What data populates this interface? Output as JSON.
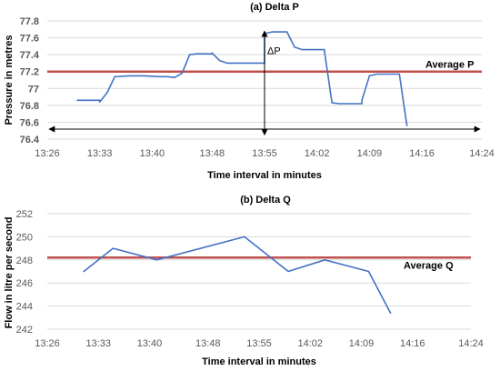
{
  "chart_data": [
    {
      "type": "line",
      "title": "(a) Delta P",
      "xlabel": "Time interval in minutes",
      "ylabel": "Pressure in metres",
      "x_tick_labels": [
        "13:26",
        "13:33",
        "13:40",
        "13:48",
        "13:55",
        "14:02",
        "14:09",
        "14:16",
        "14:24"
      ],
      "y_tick_labels": [
        "76.4",
        "76.6",
        "76.8",
        "77",
        "77.2",
        "77.4",
        "77.6",
        "77.8"
      ],
      "xlim": [
        "13:26",
        "14:24"
      ],
      "ylim": [
        76.4,
        77.8
      ],
      "grid": "horizontal",
      "colors": {
        "series": "#4472C4",
        "average": "#C0504D",
        "arrow": "#000000"
      },
      "series": [
        {
          "x": [
            "13:30",
            "13:31",
            "13:32",
            "13:33",
            "13:33",
            "13:34",
            "13:35",
            "13:37",
            "13:39",
            "13:41",
            "13:42",
            "13:43",
            "13:43",
            "13:44",
            "13:45",
            "13:46",
            "13:47",
            "13:48",
            "13:48",
            "13:49",
            "13:50",
            "13:51",
            "13:52",
            "13:53",
            "13:54",
            "13:55",
            "13:55",
            "13:56",
            "13:57",
            "13:58",
            "13:58",
            "13:59",
            "14:00",
            "14:01",
            "14:02",
            "14:03",
            "14:03",
            "14:04",
            "14:05",
            "14:06",
            "14:07",
            "14:08",
            "14:08",
            "14:09",
            "14:10",
            "14:11",
            "14:12",
            "14:13",
            "14:14"
          ],
          "values": [
            76.86,
            76.86,
            76.86,
            76.86,
            76.84,
            76.95,
            77.14,
            77.15,
            77.15,
            77.14,
            77.14,
            77.13,
            77.13,
            77.18,
            77.4,
            77.41,
            77.41,
            77.41,
            77.42,
            77.33,
            77.3,
            77.3,
            77.3,
            77.3,
            77.3,
            77.3,
            77.65,
            77.67,
            77.67,
            77.67,
            77.67,
            77.49,
            77.46,
            77.46,
            77.46,
            77.46,
            77.44,
            76.83,
            76.82,
            76.82,
            76.82,
            76.82,
            76.86,
            77.15,
            77.17,
            77.17,
            77.17,
            77.17,
            76.56
          ]
        }
      ],
      "reference_line": {
        "label": "Average P",
        "value": 77.2
      },
      "annotations": [
        {
          "text": "ΔP"
        }
      ]
    },
    {
      "type": "line",
      "title": "(b) Delta Q",
      "xlabel": "Time interval in minutes",
      "ylabel": "Flow in litre per second",
      "x_tick_labels": [
        "13:26",
        "13:33",
        "13:40",
        "13:48",
        "13:55",
        "14:02",
        "14:09",
        "14:16",
        "14:24"
      ],
      "y_tick_labels": [
        "242",
        "244",
        "246",
        "248",
        "250",
        "252"
      ],
      "xlim": [
        "13:26",
        "14:24"
      ],
      "ylim": [
        242,
        252
      ],
      "grid": "horizontal",
      "colors": {
        "series": "#4472C4",
        "average": "#C0504D"
      },
      "series": [
        {
          "x": [
            "13:31",
            "13:35",
            "13:41",
            "13:53",
            "13:59",
            "14:04",
            "14:10",
            "14:13"
          ],
          "values": [
            247,
            249,
            248,
            250,
            247,
            248,
            247,
            243.4
          ]
        }
      ],
      "reference_line": {
        "label": "Average Q",
        "value": 248.2
      }
    }
  ]
}
